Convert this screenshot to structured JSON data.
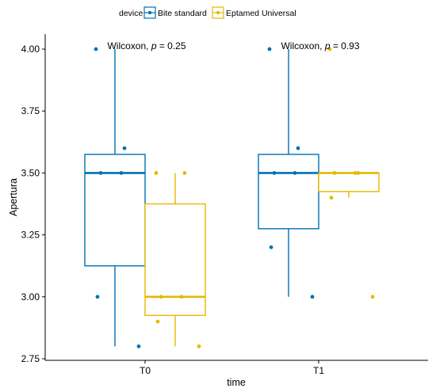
{
  "chart_data": {
    "type": "boxplot",
    "xlabel": "time",
    "ylabel": "Apertura",
    "ylim": [
      2.75,
      4.05
    ],
    "yticks": [
      "2.75",
      "3.00",
      "3.25",
      "3.50",
      "3.75",
      "4.00"
    ],
    "categories": [
      "T0",
      "T1"
    ],
    "legend": {
      "title": "device",
      "position": "top"
    },
    "series": [
      {
        "name": "Bite standard",
        "color": "#0072B2",
        "boxes": [
          {
            "category": "T0",
            "min": 2.8,
            "q1": 3.125,
            "median": 3.5,
            "q3": 3.575,
            "max": 4.0,
            "points": [
              4.0,
              3.6,
              3.5,
              3.5,
              3.0,
              2.8
            ]
          },
          {
            "category": "T1",
            "min": 3.0,
            "q1": 3.275,
            "median": 3.5,
            "q3": 3.575,
            "max": 4.0,
            "points": [
              4.0,
              3.6,
              3.5,
              3.5,
              3.2,
              3.0
            ]
          }
        ]
      },
      {
        "name": "Eptamed Universal",
        "color": "#E7B800",
        "boxes": [
          {
            "category": "T0",
            "min": 2.8,
            "q1": 2.925,
            "median": 3.0,
            "q3": 3.375,
            "max": 3.5,
            "points": [
              3.5,
              3.5,
              3.0,
              3.0,
              2.9,
              2.8
            ]
          },
          {
            "category": "T1",
            "min": 3.4,
            "q1": 3.425,
            "median": 3.5,
            "q3": 3.5,
            "max": 3.5,
            "points": [
              4.0,
              3.5,
              3.5,
              3.5,
              3.4,
              3.0
            ]
          }
        ]
      }
    ],
    "annotations": [
      {
        "category": "T0",
        "method": "Wilcoxon, ",
        "pvar": "p",
        "pval": " = 0.25"
      },
      {
        "category": "T1",
        "method": "Wilcoxon, ",
        "pvar": "p",
        "pval": " = 0.93"
      }
    ]
  }
}
